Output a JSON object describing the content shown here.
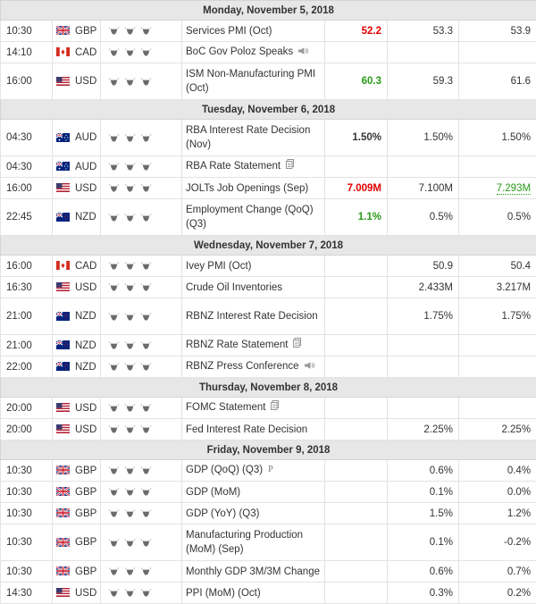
{
  "colors": {
    "better": "#2a9a1a",
    "worse": "#e00000"
  },
  "days": [
    {
      "label": "Monday, November 5, 2018",
      "events": [
        {
          "time": "10:30",
          "currency": "GBP",
          "flag": "uk",
          "event": "Services PMI (Oct)",
          "actual": "52.2",
          "actual_color": "red",
          "forecast": "53.3",
          "previous": "53.9"
        },
        {
          "time": "14:10",
          "currency": "CAD",
          "flag": "ca",
          "event": "BoC Gov Poloz Speaks",
          "icon": "speaker-icon",
          "actual": "",
          "forecast": "",
          "previous": ""
        },
        {
          "time": "16:00",
          "currency": "USD",
          "flag": "us",
          "event": "ISM Non-Manufacturing PMI (Oct)",
          "actual": "60.3",
          "actual_color": "green",
          "forecast": "59.3",
          "previous": "61.6"
        }
      ]
    },
    {
      "label": "Tuesday, November 6, 2018",
      "events": [
        {
          "time": "04:30",
          "currency": "AUD",
          "flag": "au",
          "event": "RBA Interest Rate Decision (Nov)",
          "actual": "1.50%",
          "actual_color": "",
          "forecast": "1.50%",
          "previous": "1.50%"
        },
        {
          "time": "04:30",
          "currency": "AUD",
          "flag": "au",
          "event": "RBA Rate Statement",
          "icon": "document-icon",
          "actual": "",
          "forecast": "",
          "previous": ""
        },
        {
          "time": "16:00",
          "currency": "USD",
          "flag": "us",
          "event": "JOLTs Job Openings (Sep)",
          "actual": "7.009M",
          "actual_color": "red",
          "forecast": "7.100M",
          "previous": "7.293M",
          "previous_color": "green"
        },
        {
          "time": "22:45",
          "currency": "NZD",
          "flag": "nz",
          "event": "Employment Change (QoQ) (Q3)",
          "actual": "1.1%",
          "actual_color": "green",
          "forecast": "0.5%",
          "previous": "0.5%"
        }
      ]
    },
    {
      "label": "Wednesday, November 7, 2018",
      "events": [
        {
          "time": "16:00",
          "currency": "CAD",
          "flag": "ca",
          "event": "Ivey PMI (Oct)",
          "actual": "",
          "forecast": "50.9",
          "previous": "50.4"
        },
        {
          "time": "16:30",
          "currency": "USD",
          "flag": "us",
          "event": "Crude Oil Inventories",
          "actual": "",
          "forecast": "2.433M",
          "previous": "3.217M"
        },
        {
          "time": "21:00",
          "currency": "NZD",
          "flag": "nz",
          "event": "RBNZ Interest Rate Decision",
          "actual": "",
          "forecast": "1.75%",
          "previous": "1.75%"
        },
        {
          "time": "21:00",
          "currency": "NZD",
          "flag": "nz",
          "event": "RBNZ Rate Statement",
          "icon": "document-icon",
          "actual": "",
          "forecast": "",
          "previous": ""
        },
        {
          "time": "22:00",
          "currency": "NZD",
          "flag": "nz",
          "event": "RBNZ Press Conference",
          "icon": "speaker-icon",
          "actual": "",
          "forecast": "",
          "previous": ""
        }
      ]
    },
    {
      "label": "Thursday, November 8, 2018",
      "events": [
        {
          "time": "20:00",
          "currency": "USD",
          "flag": "us",
          "event": "FOMC Statement",
          "icon": "document-icon",
          "actual": "",
          "forecast": "",
          "previous": ""
        },
        {
          "time": "20:00",
          "currency": "USD",
          "flag": "us",
          "event": "Fed Interest Rate Decision",
          "actual": "",
          "forecast": "2.25%",
          "previous": "2.25%"
        }
      ]
    },
    {
      "label": "Friday, November 9, 2018",
      "events": [
        {
          "time": "10:30",
          "currency": "GBP",
          "flag": "uk",
          "event": "GDP (QoQ) (Q3)",
          "icon": "preliminary-icon",
          "icon_text": "P",
          "actual": "",
          "forecast": "0.6%",
          "previous": "0.4%"
        },
        {
          "time": "10:30",
          "currency": "GBP",
          "flag": "uk",
          "event": "GDP (MoM)",
          "actual": "",
          "forecast": "0.1%",
          "previous": "0.0%"
        },
        {
          "time": "10:30",
          "currency": "GBP",
          "flag": "uk",
          "event": "GDP (YoY) (Q3)",
          "actual": "",
          "forecast": "1.5%",
          "previous": "1.2%"
        },
        {
          "time": "10:30",
          "currency": "GBP",
          "flag": "uk",
          "event": "Manufacturing Production (MoM) (Sep)",
          "actual": "",
          "forecast": "0.1%",
          "previous": "-0.2%"
        },
        {
          "time": "10:30",
          "currency": "GBP",
          "flag": "uk",
          "event": "Monthly GDP 3M/3M Change",
          "actual": "",
          "forecast": "0.6%",
          "previous": "0.7%"
        },
        {
          "time": "14:30",
          "currency": "USD",
          "flag": "us",
          "event": "PPI (MoM) (Oct)",
          "actual": "",
          "forecast": "0.3%",
          "previous": "0.2%"
        }
      ]
    }
  ]
}
